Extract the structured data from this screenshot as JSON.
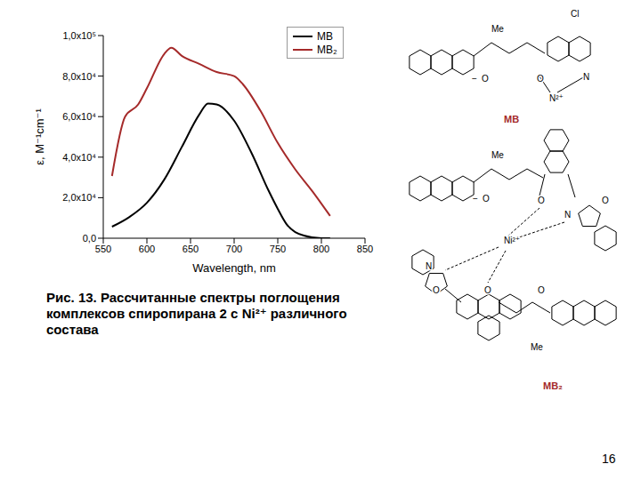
{
  "chart_data": {
    "type": "line",
    "x_label": "Wavelength, nm",
    "y_label": "ε, M⁻¹cm⁻¹",
    "xlim": [
      550,
      850
    ],
    "xticks": [
      550,
      600,
      650,
      700,
      750,
      800,
      850
    ],
    "ylim": [
      0,
      100000
    ],
    "yticks": [
      {
        "value": 0,
        "label": "0,0"
      },
      {
        "value": 20000,
        "label": "2,0x10⁴"
      },
      {
        "value": 40000,
        "label": "4,0x10⁴"
      },
      {
        "value": 60000,
        "label": "6,0x10⁴"
      },
      {
        "value": 80000,
        "label": "8,0x10⁴"
      },
      {
        "value": 100000,
        "label": "1,0x10⁵"
      }
    ],
    "legend": "upper right",
    "grid": false,
    "series": [
      {
        "name": "MB",
        "color": "#000000",
        "x": [
          560,
          580,
          600,
          620,
          640,
          660,
          670,
          680,
          700,
          720,
          740,
          750,
          760,
          780,
          800,
          810
        ],
        "values": [
          5700,
          10500,
          17500,
          29000,
          45000,
          61000,
          66500,
          66000,
          58000,
          42000,
          23000,
          14500,
          7000,
          1300,
          0,
          0
        ]
      },
      {
        "name": "MB₂",
        "color": "#a52a2a",
        "x": [
          560,
          575,
          590,
          600,
          620,
          628,
          640,
          660,
          680,
          700,
          710,
          730,
          750,
          770,
          790,
          810
        ],
        "values": [
          30700,
          60000,
          66000,
          74000,
          91000,
          94000,
          90000,
          86000,
          82000,
          80000,
          76000,
          63000,
          47000,
          34000,
          23000,
          11000
        ]
      }
    ]
  },
  "caption": "Рис. 13. Рассчитанные спектры поглощения комплексов спиропирана 2 с Ni²⁺ различного состава",
  "page_number": "16",
  "structures": [
    {
      "name": "MB",
      "labels": [
        "Me",
        "Cl",
        "−",
        "O",
        "O",
        "N",
        "N²⁺"
      ]
    },
    {
      "name": "MB₂",
      "labels": [
        "Me",
        "−",
        "O",
        "O",
        "N",
        "O",
        "Ni²⁺",
        "N",
        "O",
        "O",
        "O",
        "Me"
      ]
    }
  ]
}
